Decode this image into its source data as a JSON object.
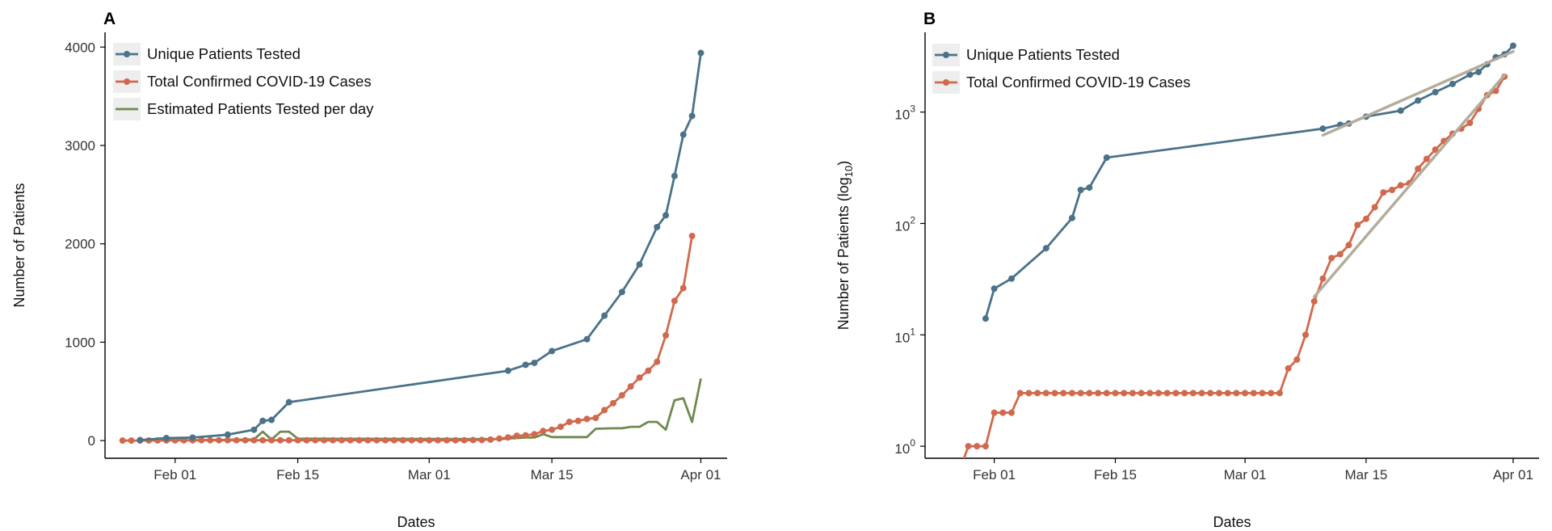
{
  "colors": {
    "tested": "#4a7289",
    "cases": "#d1694e",
    "daily": "#6e8a4f",
    "fit": "#b4ad9b"
  },
  "chart_data": [
    {
      "panel_label": "A",
      "type": "line",
      "xlabel": "Dates",
      "ylabel": "Number of Patients",
      "x_ticks": [
        {
          "date": "2020-02-01",
          "label": "Feb 01"
        },
        {
          "date": "2020-02-15",
          "label": "Feb 15"
        },
        {
          "date": "2020-03-01",
          "label": "Mar 01"
        },
        {
          "date": "2020-03-15",
          "label": "Mar 15"
        },
        {
          "date": "2020-04-01",
          "label": "Apr 01"
        }
      ],
      "xlim": [
        "2020-01-24",
        "2020-04-04"
      ],
      "y_ticks": [
        0,
        1000,
        2000,
        3000,
        4000
      ],
      "ylim": [
        -180,
        4150
      ],
      "y_scale": "linear",
      "legend_position": "top-left",
      "grid": false,
      "series": [
        {
          "name": "Unique Patients Tested",
          "color_key": "tested",
          "markers": true,
          "points": [
            [
              "2020-01-28",
              5
            ],
            [
              "2020-01-31",
              25
            ],
            [
              "2020-02-03",
              30
            ],
            [
              "2020-02-07",
              60
            ],
            [
              "2020-02-10",
              110
            ],
            [
              "2020-02-11",
              200
            ],
            [
              "2020-02-12",
              210
            ],
            [
              "2020-02-14",
              390
            ],
            [
              "2020-03-10",
              710
            ],
            [
              "2020-03-12",
              770
            ],
            [
              "2020-03-13",
              790
            ],
            [
              "2020-03-15",
              910
            ],
            [
              "2020-03-19",
              1030
            ],
            [
              "2020-03-21",
              1270
            ],
            [
              "2020-03-23",
              1510
            ],
            [
              "2020-03-25",
              1790
            ],
            [
              "2020-03-27",
              2170
            ],
            [
              "2020-03-28",
              2290
            ],
            [
              "2020-03-29",
              2690
            ],
            [
              "2020-03-30",
              3110
            ],
            [
              "2020-03-31",
              3300
            ],
            [
              "2020-04-01",
              3940
            ]
          ]
        },
        {
          "name": "Total Confirmed COVID-19 Cases",
          "color_key": "cases",
          "markers": true,
          "points": [
            [
              "2020-01-26",
              0
            ],
            [
              "2020-01-27",
              0
            ],
            [
              "2020-01-28",
              0
            ],
            [
              "2020-01-29",
              1
            ],
            [
              "2020-01-30",
              1
            ],
            [
              "2020-01-31",
              1
            ],
            [
              "2020-02-01",
              2
            ],
            [
              "2020-02-02",
              2
            ],
            [
              "2020-02-03",
              2
            ],
            [
              "2020-02-04",
              3
            ],
            [
              "2020-02-05",
              3
            ],
            [
              "2020-02-06",
              3
            ],
            [
              "2020-02-07",
              3
            ],
            [
              "2020-02-08",
              3
            ],
            [
              "2020-02-09",
              3
            ],
            [
              "2020-02-10",
              3
            ],
            [
              "2020-02-11",
              3
            ],
            [
              "2020-02-12",
              3
            ],
            [
              "2020-02-13",
              3
            ],
            [
              "2020-02-14",
              3
            ],
            [
              "2020-02-15",
              3
            ],
            [
              "2020-02-16",
              3
            ],
            [
              "2020-02-17",
              3
            ],
            [
              "2020-02-18",
              3
            ],
            [
              "2020-02-19",
              3
            ],
            [
              "2020-02-20",
              3
            ],
            [
              "2020-02-21",
              3
            ],
            [
              "2020-02-22",
              3
            ],
            [
              "2020-02-23",
              3
            ],
            [
              "2020-02-24",
              3
            ],
            [
              "2020-02-25",
              3
            ],
            [
              "2020-02-26",
              3
            ],
            [
              "2020-02-27",
              3
            ],
            [
              "2020-02-28",
              3
            ],
            [
              "2020-02-29",
              3
            ],
            [
              "2020-03-01",
              3
            ],
            [
              "2020-03-02",
              3
            ],
            [
              "2020-03-03",
              3
            ],
            [
              "2020-03-04",
              3
            ],
            [
              "2020-03-05",
              3
            ],
            [
              "2020-03-06",
              5
            ],
            [
              "2020-03-07",
              6
            ],
            [
              "2020-03-08",
              10
            ],
            [
              "2020-03-09",
              20
            ],
            [
              "2020-03-10",
              32
            ],
            [
              "2020-03-11",
              49
            ],
            [
              "2020-03-12",
              53
            ],
            [
              "2020-03-13",
              64
            ],
            [
              "2020-03-14",
              97
            ],
            [
              "2020-03-15",
              110
            ],
            [
              "2020-03-16",
              140
            ],
            [
              "2020-03-17",
              190
            ],
            [
              "2020-03-18",
              200
            ],
            [
              "2020-03-19",
              220
            ],
            [
              "2020-03-20",
              230
            ],
            [
              "2020-03-21",
              310
            ],
            [
              "2020-03-22",
              380
            ],
            [
              "2020-03-23",
              460
            ],
            [
              "2020-03-24",
              550
            ],
            [
              "2020-03-25",
              640
            ],
            [
              "2020-03-26",
              710
            ],
            [
              "2020-03-27",
              800
            ],
            [
              "2020-03-28",
              1070
            ],
            [
              "2020-03-29",
              1420
            ],
            [
              "2020-03-30",
              1550
            ],
            [
              "2020-03-31",
              2080
            ]
          ]
        },
        {
          "name": "Estimated Patients Tested per day",
          "color_key": "daily",
          "markers": false,
          "points": [
            [
              "2020-01-28",
              5
            ],
            [
              "2020-01-31",
              7
            ],
            [
              "2020-02-03",
              2
            ],
            [
              "2020-02-07",
              8
            ],
            [
              "2020-02-10",
              12
            ],
            [
              "2020-02-11",
              90
            ],
            [
              "2020-02-12",
              10
            ],
            [
              "2020-02-13",
              90
            ],
            [
              "2020-02-14",
              90
            ],
            [
              "2020-02-15",
              20
            ],
            [
              "2020-03-09",
              15
            ],
            [
              "2020-03-12",
              30
            ],
            [
              "2020-03-13",
              30
            ],
            [
              "2020-03-14",
              65
            ],
            [
              "2020-03-15",
              35
            ],
            [
              "2020-03-16",
              35
            ],
            [
              "2020-03-19",
              35
            ],
            [
              "2020-03-20",
              120
            ],
            [
              "2020-03-22",
              125
            ],
            [
              "2020-03-23",
              125
            ],
            [
              "2020-03-24",
              140
            ],
            [
              "2020-03-25",
              140
            ],
            [
              "2020-03-26",
              190
            ],
            [
              "2020-03-27",
              190
            ],
            [
              "2020-03-28",
              110
            ],
            [
              "2020-03-29",
              410
            ],
            [
              "2020-03-30",
              430
            ],
            [
              "2020-03-31",
              190
            ],
            [
              "2020-04-01",
              630
            ]
          ]
        }
      ]
    },
    {
      "panel_label": "B",
      "type": "line",
      "xlabel": "Dates",
      "ylabel": "Number of Patients (log",
      "ylabel_sub": "10",
      "ylabel_end": ")",
      "x_ticks": [
        {
          "date": "2020-02-01",
          "label": "Feb 01"
        },
        {
          "date": "2020-02-15",
          "label": "Feb 15"
        },
        {
          "date": "2020-03-01",
          "label": "Mar 01"
        },
        {
          "date": "2020-03-15",
          "label": "Mar 15"
        },
        {
          "date": "2020-04-01",
          "label": "Apr 01"
        }
      ],
      "xlim": [
        "2020-01-24",
        "2020-04-04"
      ],
      "y_ticks": [
        1,
        10,
        100,
        1000
      ],
      "y_tick_base": "10",
      "y_tick_exponents": [
        "0",
        "1",
        "2",
        "3"
      ],
      "ylim": [
        0.78,
        5200
      ],
      "y_scale": "log10",
      "legend_position": "top-left",
      "grid": false,
      "series": [
        {
          "name": "Unique Patients Tested",
          "color_key": "tested",
          "markers": true,
          "points": [
            [
              "2020-01-31",
              14
            ],
            [
              "2020-02-01",
              26
            ],
            [
              "2020-02-03",
              32
            ],
            [
              "2020-02-07",
              60
            ],
            [
              "2020-02-10",
              112
            ],
            [
              "2020-02-11",
              200
            ],
            [
              "2020-02-12",
              210
            ],
            [
              "2020-02-14",
              390
            ],
            [
              "2020-03-10",
              710
            ],
            [
              "2020-03-12",
              770
            ],
            [
              "2020-03-13",
              790
            ],
            [
              "2020-03-15",
              910
            ],
            [
              "2020-03-19",
              1030
            ],
            [
              "2020-03-21",
              1270
            ],
            [
              "2020-03-23",
              1510
            ],
            [
              "2020-03-25",
              1790
            ],
            [
              "2020-03-27",
              2170
            ],
            [
              "2020-03-28",
              2290
            ],
            [
              "2020-03-29",
              2690
            ],
            [
              "2020-03-30",
              3110
            ],
            [
              "2020-03-31",
              3300
            ],
            [
              "2020-04-01",
              3940
            ]
          ]
        },
        {
          "name": "Total Confirmed COVID-19 Cases",
          "color_key": "cases",
          "markers": true,
          "points": [
            [
              "2020-01-27",
              0.6
            ],
            [
              "2020-01-28",
              0.6
            ],
            [
              "2020-01-29",
              1
            ],
            [
              "2020-01-30",
              1
            ],
            [
              "2020-01-31",
              1
            ],
            [
              "2020-02-01",
              2
            ],
            [
              "2020-02-02",
              2
            ],
            [
              "2020-02-03",
              2
            ],
            [
              "2020-02-04",
              3
            ],
            [
              "2020-02-05",
              3
            ],
            [
              "2020-02-06",
              3
            ],
            [
              "2020-02-07",
              3
            ],
            [
              "2020-02-08",
              3
            ],
            [
              "2020-02-09",
              3
            ],
            [
              "2020-02-10",
              3
            ],
            [
              "2020-02-11",
              3
            ],
            [
              "2020-02-12",
              3
            ],
            [
              "2020-02-13",
              3
            ],
            [
              "2020-02-14",
              3
            ],
            [
              "2020-02-15",
              3
            ],
            [
              "2020-02-16",
              3
            ],
            [
              "2020-02-17",
              3
            ],
            [
              "2020-02-18",
              3
            ],
            [
              "2020-02-19",
              3
            ],
            [
              "2020-02-20",
              3
            ],
            [
              "2020-02-21",
              3
            ],
            [
              "2020-02-22",
              3
            ],
            [
              "2020-02-23",
              3
            ],
            [
              "2020-02-24",
              3
            ],
            [
              "2020-02-25",
              3
            ],
            [
              "2020-02-26",
              3
            ],
            [
              "2020-02-27",
              3
            ],
            [
              "2020-02-28",
              3
            ],
            [
              "2020-02-29",
              3
            ],
            [
              "2020-03-01",
              3
            ],
            [
              "2020-03-02",
              3
            ],
            [
              "2020-03-03",
              3
            ],
            [
              "2020-03-04",
              3
            ],
            [
              "2020-03-05",
              3
            ],
            [
              "2020-03-06",
              5
            ],
            [
              "2020-03-07",
              6
            ],
            [
              "2020-03-08",
              10
            ],
            [
              "2020-03-09",
              20
            ],
            [
              "2020-03-10",
              32
            ],
            [
              "2020-03-11",
              49
            ],
            [
              "2020-03-12",
              53
            ],
            [
              "2020-03-13",
              64
            ],
            [
              "2020-03-14",
              97
            ],
            [
              "2020-03-15",
              110
            ],
            [
              "2020-03-16",
              140
            ],
            [
              "2020-03-17",
              190
            ],
            [
              "2020-03-18",
              200
            ],
            [
              "2020-03-19",
              220
            ],
            [
              "2020-03-20",
              230
            ],
            [
              "2020-03-21",
              310
            ],
            [
              "2020-03-22",
              380
            ],
            [
              "2020-03-23",
              460
            ],
            [
              "2020-03-24",
              550
            ],
            [
              "2020-03-25",
              640
            ],
            [
              "2020-03-26",
              710
            ],
            [
              "2020-03-27",
              800
            ],
            [
              "2020-03-28",
              1070
            ],
            [
              "2020-03-29",
              1420
            ],
            [
              "2020-03-30",
              1550
            ],
            [
              "2020-03-31",
              2080
            ]
          ]
        }
      ],
      "trend_lines": [
        {
          "color_key": "fit",
          "points": [
            [
              "2020-03-10",
              620
            ],
            [
              "2020-04-01",
              3500
            ]
          ]
        },
        {
          "color_key": "fit",
          "points": [
            [
              "2020-03-09",
              22
            ],
            [
              "2020-03-31",
              2150
            ]
          ]
        }
      ]
    }
  ]
}
